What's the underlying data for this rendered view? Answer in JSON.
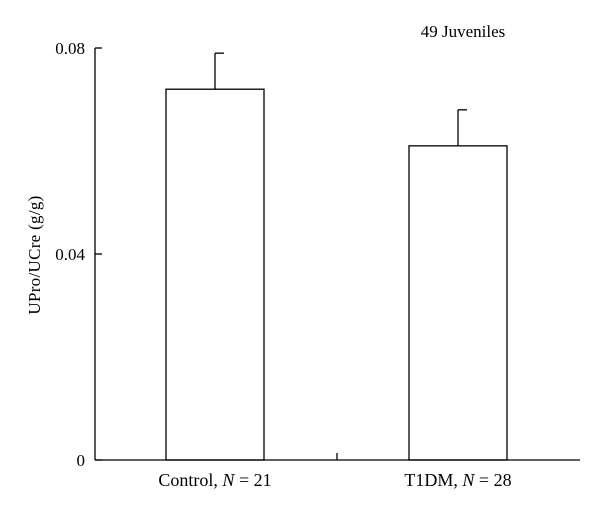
{
  "chart_data": {
    "type": "bar",
    "title": "",
    "annotation": "49 Juveniles",
    "xlabel": "",
    "ylabel": "UPro/UCre (g/g)",
    "ylim": [
      0,
      0.08
    ],
    "yticks": [
      {
        "value": 0,
        "label": "0"
      },
      {
        "value": 0.04,
        "label": "0.04"
      },
      {
        "value": 0.08,
        "label": "0.08"
      }
    ],
    "categories": [
      {
        "name": "Control",
        "n_symbol": "N",
        "n_value": "21"
      },
      {
        "name": "T1DM",
        "n_symbol": "N",
        "n_value": "28"
      }
    ],
    "values": [
      0.072,
      0.061
    ],
    "errors": [
      0.007,
      0.007
    ],
    "bar_fill": "#ffffff",
    "bar_edge": "#000000",
    "grid": false
  }
}
